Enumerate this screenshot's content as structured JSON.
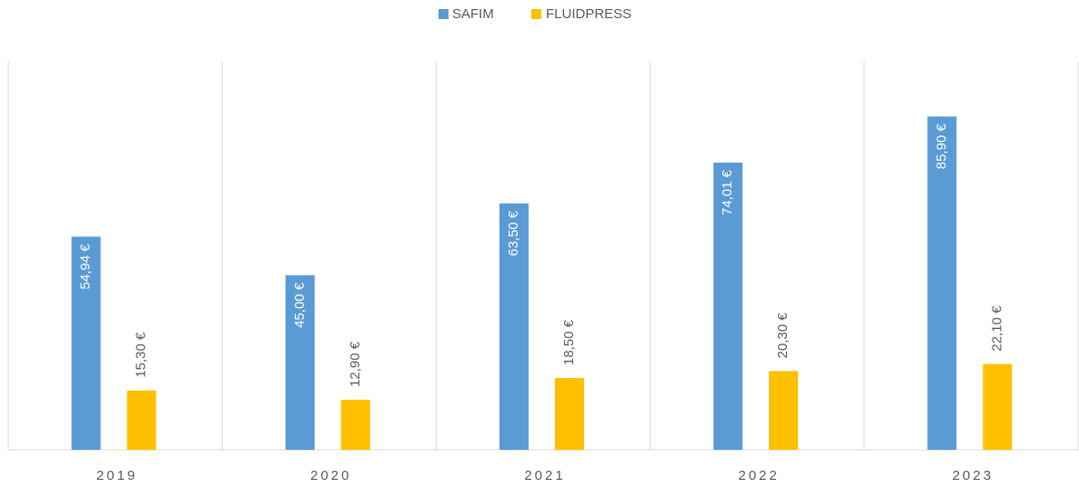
{
  "chart_data": {
    "type": "bar",
    "categories": [
      "2019",
      "2020",
      "2021",
      "2022",
      "2023"
    ],
    "series": [
      {
        "name": "SAFIM",
        "color": "#5b9bd5",
        "values": [
          54.94,
          45.0,
          63.5,
          74.01,
          85.9
        ],
        "value_labels": [
          "54,94 €",
          "45,00 €",
          "63,50 €",
          "74,01 €",
          "85,90 €"
        ]
      },
      {
        "name": "FLUIDPRESS",
        "color": "#ffc000",
        "values": [
          15.3,
          12.9,
          18.5,
          20.3,
          22.1
        ],
        "value_labels": [
          "15,30 €",
          "12,90 €",
          "18,50 €",
          "20,30 €",
          "22,10 €"
        ]
      }
    ],
    "ylim": [
      0,
      100
    ],
    "legend": "top"
  }
}
